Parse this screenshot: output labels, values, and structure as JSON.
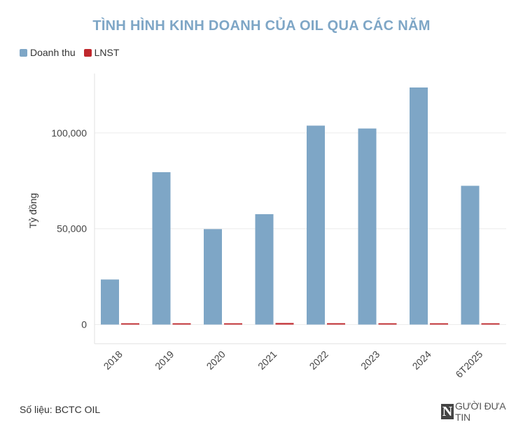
{
  "chart_data": {
    "type": "bar",
    "title": "TÌNH HÌNH KINH DOANH CỦA OIL QUA CÁC NĂM",
    "ylabel": "Tỷ đồng",
    "xlabel": "",
    "categories": [
      "2018",
      "2019",
      "2020",
      "2021",
      "2022",
      "2023",
      "2024",
      "6T2025"
    ],
    "series": [
      {
        "name": "Doanh thu",
        "color": "#7ea6c6",
        "values": [
          23500,
          79500,
          49800,
          57600,
          103800,
          102300,
          123700,
          72400
        ]
      },
      {
        "name": "LNST",
        "color": "#c0282d",
        "values": [
          120,
          500,
          200,
          800,
          700,
          600,
          500,
          200
        ]
      }
    ],
    "ylim": [
      -10000,
      131000
    ],
    "yticks": [
      0,
      50000,
      100000
    ],
    "ytick_labels": [
      "0",
      "50,000",
      "100,000"
    ],
    "grid": true,
    "legend_position": "top-left"
  },
  "footer": {
    "source": "Số liệu: BCTC OIL",
    "logo_mark": "N",
    "logo_text": "GƯỜI ĐƯA TIN"
  }
}
